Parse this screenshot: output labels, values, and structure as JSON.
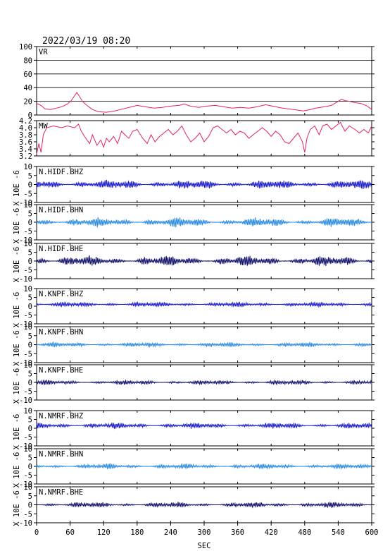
{
  "header": {
    "datetime": "2022/03/19 08:20"
  },
  "chart_data": {
    "type": "line",
    "xlabel": "SEC",
    "xlim": [
      0,
      600
    ],
    "x_ticks": [
      0,
      60,
      120,
      180,
      240,
      300,
      360,
      420,
      480,
      540,
      600
    ],
    "grid": true,
    "panels": [
      {
        "label": "VR",
        "ylim": [
          0,
          100
        ],
        "y_ticks": [
          0,
          20,
          40,
          60,
          80,
          100
        ],
        "color": "#e0245a",
        "series": [
          [
            0,
            17
          ],
          [
            8,
            14
          ],
          [
            15,
            9
          ],
          [
            25,
            8
          ],
          [
            35,
            10
          ],
          [
            45,
            12
          ],
          [
            55,
            16
          ],
          [
            62,
            21
          ],
          [
            68,
            28
          ],
          [
            72,
            33
          ],
          [
            76,
            28
          ],
          [
            82,
            20
          ],
          [
            90,
            14
          ],
          [
            100,
            8
          ],
          [
            110,
            5
          ],
          [
            125,
            4
          ],
          [
            140,
            6
          ],
          [
            155,
            9
          ],
          [
            170,
            12
          ],
          [
            180,
            14
          ],
          [
            195,
            12
          ],
          [
            210,
            10
          ],
          [
            225,
            11
          ],
          [
            240,
            13
          ],
          [
            255,
            14
          ],
          [
            265,
            16
          ],
          [
            275,
            13
          ],
          [
            290,
            11
          ],
          [
            305,
            13
          ],
          [
            320,
            14
          ],
          [
            335,
            12
          ],
          [
            350,
            10
          ],
          [
            365,
            11
          ],
          [
            380,
            10
          ],
          [
            395,
            12
          ],
          [
            410,
            15
          ],
          [
            422,
            13
          ],
          [
            440,
            10
          ],
          [
            460,
            8
          ],
          [
            478,
            6
          ],
          [
            490,
            8
          ],
          [
            500,
            10
          ],
          [
            515,
            12
          ],
          [
            528,
            14
          ],
          [
            538,
            19
          ],
          [
            546,
            23
          ],
          [
            552,
            21
          ],
          [
            560,
            20
          ],
          [
            570,
            18
          ],
          [
            580,
            17
          ],
          [
            590,
            14
          ],
          [
            600,
            8
          ]
        ]
      },
      {
        "label": "MW",
        "ylim": [
          3.2,
          4.2
        ],
        "y_ticks": [
          3.2,
          3.4,
          3.6,
          3.8,
          4.0,
          4.2
        ],
        "color": "#e0245a",
        "series": [
          [
            0,
            3.25
          ],
          [
            4,
            3.55
          ],
          [
            8,
            3.3
          ],
          [
            12,
            3.8
          ],
          [
            18,
            4.0
          ],
          [
            30,
            4.05
          ],
          [
            45,
            4.0
          ],
          [
            55,
            4.05
          ],
          [
            68,
            4.0
          ],
          [
            75,
            4.1
          ],
          [
            80,
            3.9
          ],
          [
            88,
            3.7
          ],
          [
            95,
            3.55
          ],
          [
            100,
            3.8
          ],
          [
            108,
            3.5
          ],
          [
            115,
            3.65
          ],
          [
            120,
            3.45
          ],
          [
            125,
            3.7
          ],
          [
            130,
            3.6
          ],
          [
            138,
            3.75
          ],
          [
            145,
            3.55
          ],
          [
            152,
            3.9
          ],
          [
            158,
            3.8
          ],
          [
            165,
            3.7
          ],
          [
            172,
            3.9
          ],
          [
            180,
            3.95
          ],
          [
            190,
            3.7
          ],
          [
            198,
            3.55
          ],
          [
            205,
            3.8
          ],
          [
            212,
            3.6
          ],
          [
            220,
            3.75
          ],
          [
            228,
            3.85
          ],
          [
            236,
            3.95
          ],
          [
            244,
            3.8
          ],
          [
            252,
            3.9
          ],
          [
            260,
            4.05
          ],
          [
            268,
            3.8
          ],
          [
            276,
            3.6
          ],
          [
            284,
            3.7
          ],
          [
            292,
            3.85
          ],
          [
            300,
            3.6
          ],
          [
            308,
            3.75
          ],
          [
            316,
            4.0
          ],
          [
            324,
            4.05
          ],
          [
            332,
            3.95
          ],
          [
            340,
            3.85
          ],
          [
            348,
            3.95
          ],
          [
            356,
            3.8
          ],
          [
            364,
            3.9
          ],
          [
            372,
            3.85
          ],
          [
            380,
            3.7
          ],
          [
            388,
            3.8
          ],
          [
            396,
            3.9
          ],
          [
            404,
            4.0
          ],
          [
            412,
            3.9
          ],
          [
            420,
            3.75
          ],
          [
            428,
            3.9
          ],
          [
            436,
            3.8
          ],
          [
            444,
            3.6
          ],
          [
            452,
            3.55
          ],
          [
            460,
            3.7
          ],
          [
            468,
            3.85
          ],
          [
            476,
            3.6
          ],
          [
            480,
            3.3
          ],
          [
            484,
            3.7
          ],
          [
            490,
            3.95
          ],
          [
            498,
            4.05
          ],
          [
            506,
            3.8
          ],
          [
            512,
            4.05
          ],
          [
            520,
            4.1
          ],
          [
            528,
            3.95
          ],
          [
            536,
            4.05
          ],
          [
            544,
            4.15
          ],
          [
            552,
            3.9
          ],
          [
            560,
            4.05
          ],
          [
            570,
            3.95
          ],
          [
            578,
            3.85
          ],
          [
            586,
            3.95
          ],
          [
            594,
            3.85
          ],
          [
            600,
            4.05
          ]
        ]
      },
      {
        "label": "N.HIDF.BHZ",
        "ylim": [
          -10,
          10
        ],
        "y_ticks": [
          -10,
          -5,
          0,
          5,
          10
        ],
        "color": "#1a1acc",
        "amplitude": 1.6,
        "offset": 0
      },
      {
        "label": "N.HIDF.BHN",
        "ylim": [
          -10,
          10
        ],
        "y_ticks": [
          -10,
          -5,
          0,
          5,
          10
        ],
        "color": "#2a8ae0",
        "amplitude": 1.6,
        "offset": 0
      },
      {
        "label": "N.HIDF.BHE",
        "ylim": [
          -10,
          10
        ],
        "y_ticks": [
          -10,
          -5,
          0,
          5,
          10
        ],
        "color": "#10106a",
        "amplitude": 1.8,
        "offset": 0
      },
      {
        "label": "N.KNPF.BHZ",
        "ylim": [
          -10,
          10
        ],
        "y_ticks": [
          -10,
          -5,
          0,
          5,
          10
        ],
        "color": "#1a1acc",
        "amplitude": 0.9,
        "offset": 1
      },
      {
        "label": "N.KNPF.BHN",
        "ylim": [
          -10,
          10
        ],
        "y_ticks": [
          -10,
          -5,
          0,
          5,
          10
        ],
        "color": "#2a8ae0",
        "amplitude": 0.8,
        "offset": 0
      },
      {
        "label": "N.KNPF.BHE",
        "ylim": [
          -10,
          10
        ],
        "y_ticks": [
          -10,
          -5,
          0,
          5,
          10
        ],
        "color": "#10106a",
        "amplitude": 0.8,
        "offset": 0
      },
      {
        "label": "N.NMRF.BHZ",
        "ylim": [
          -10,
          10
        ],
        "y_ticks": [
          -10,
          -5,
          0,
          5,
          10
        ],
        "color": "#1a1acc",
        "amplitude": 1.0,
        "offset": 1.5
      },
      {
        "label": "N.NMRF.BHN",
        "ylim": [
          -10,
          10
        ],
        "y_ticks": [
          -10,
          -5,
          0,
          5,
          10
        ],
        "color": "#2a8ae0",
        "amplitude": 0.9,
        "offset": 0
      },
      {
        "label": "N.NMRF.BHE",
        "ylim": [
          -10,
          10
        ],
        "y_ticks": [
          -10,
          -5,
          0,
          5,
          10
        ],
        "color": "#10106a",
        "amplitude": 0.9,
        "offset": 0
      }
    ],
    "waveform_unit_label": "X 10E -6"
  }
}
